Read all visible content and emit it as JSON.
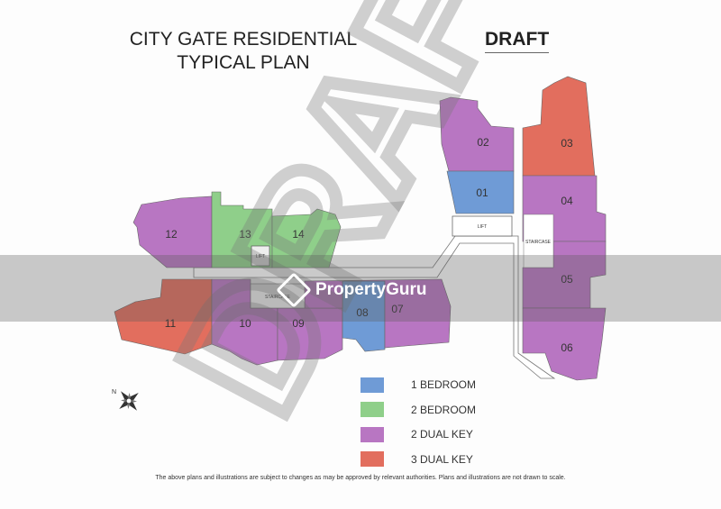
{
  "title_line1": "CITY GATE RESIDENTIAL",
  "title_line2": "TYPICAL PLAN",
  "draft_label": "DRAFT",
  "watermark_text": "DRAFT",
  "colors": {
    "1_bedroom": "#6f9bd6",
    "2_bedroom": "#8fcf8a",
    "2_dual_key": "#b876c2",
    "3_dual_key": "#e26e5e"
  },
  "units": [
    {
      "id": "01",
      "type": "1_bedroom"
    },
    {
      "id": "02",
      "type": "2_dual_key"
    },
    {
      "id": "03",
      "type": "3_dual_key"
    },
    {
      "id": "04",
      "type": "2_dual_key"
    },
    {
      "id": "05",
      "type": "2_dual_key"
    },
    {
      "id": "06",
      "type": "2_dual_key"
    },
    {
      "id": "07",
      "type": "2_dual_key"
    },
    {
      "id": "08",
      "type": "1_bedroom"
    },
    {
      "id": "09",
      "type": "2_dual_key"
    },
    {
      "id": "10",
      "type": "2_dual_key"
    },
    {
      "id": "11",
      "type": "3_dual_key"
    },
    {
      "id": "12",
      "type": "2_dual_key"
    },
    {
      "id": "13",
      "type": "2_bedroom"
    },
    {
      "id": "14",
      "type": "2_bedroom"
    }
  ],
  "labels": {
    "lift": "LIFT",
    "staircase": "STAIRCASE",
    "north": "N"
  },
  "legend": [
    {
      "label": "1 BEDROOM",
      "color": "#6f9bd6"
    },
    {
      "label": "2 BEDROOM",
      "color": "#8fcf8a"
    },
    {
      "label": "2 DUAL KEY",
      "color": "#b876c2"
    },
    {
      "label": "3 DUAL KEY",
      "color": "#e26e5e"
    }
  ],
  "footer": "The above plans and illustrations are subject to changes as may be approved by relevant authorities. Plans and illustrations are not drawn to scale.",
  "brand": "PropertyGuru"
}
